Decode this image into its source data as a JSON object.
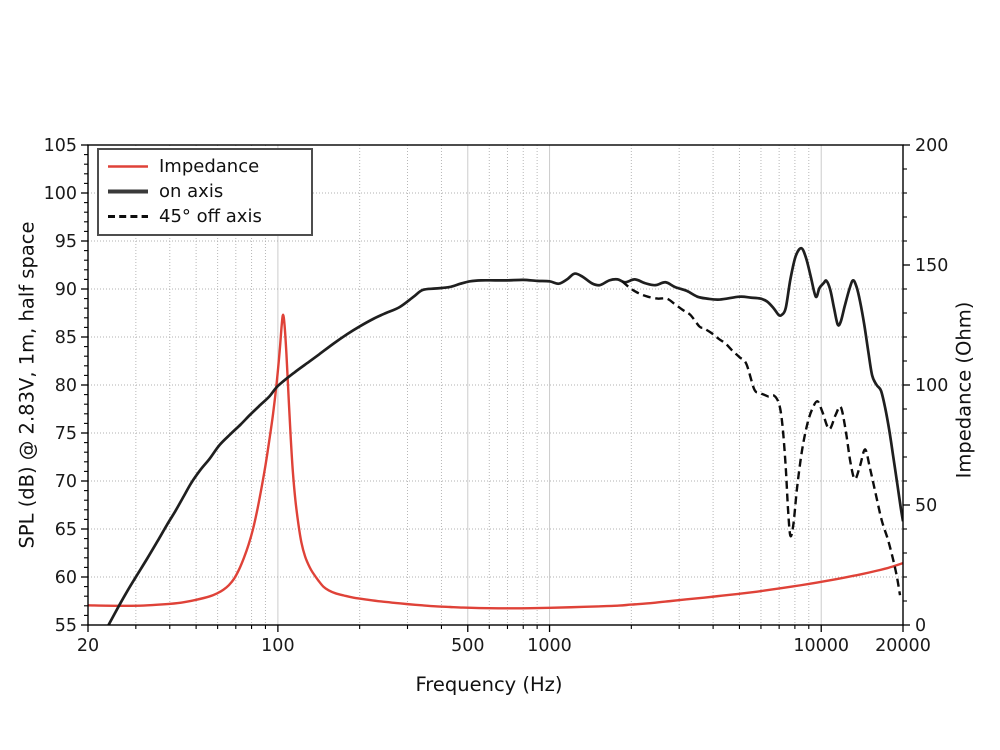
{
  "chart_data": {
    "type": "line",
    "x_axis": {
      "label": "Frequency (Hz)",
      "scale": "log",
      "min": 20,
      "max": 20000,
      "major_ticks": [
        {
          "v": 20,
          "l": "20"
        },
        {
          "v": 100,
          "l": "100"
        },
        {
          "v": 500,
          "l": "500"
        },
        {
          "v": 1000,
          "l": "1000"
        },
        {
          "v": 10000,
          "l": "10000"
        },
        {
          "v": 20000,
          "l": "20000"
        }
      ],
      "minor_ticks": [
        30,
        40,
        50,
        60,
        70,
        80,
        90,
        200,
        300,
        400,
        600,
        700,
        800,
        900,
        2000,
        3000,
        4000,
        5000,
        6000,
        7000,
        8000,
        9000
      ]
    },
    "y_left_axis": {
      "label": "SPL (dB) @ 2.83V, 1m, half space",
      "min": 55,
      "max": 105,
      "major_step": 5,
      "minor_step": 1
    },
    "y_right_axis": {
      "label": "Impedance (Ohm)",
      "min": 0,
      "max": 200,
      "major_step": 50,
      "minor_step": 10
    },
    "grid": {
      "style": "dotted",
      "color": "#b0b0b0"
    },
    "legend_position": "top-left",
    "series": [
      {
        "name": "Impedance",
        "axis": "right",
        "unit": "Ohm",
        "color": "#df4238",
        "style": "solid",
        "points": [
          [
            20,
            8.2
          ],
          [
            26,
            8.0
          ],
          [
            32,
            8.1
          ],
          [
            38,
            8.6
          ],
          [
            44,
            9.3
          ],
          [
            50,
            10.5
          ],
          [
            56,
            11.9
          ],
          [
            60,
            13.3
          ],
          [
            63,
            14.7
          ],
          [
            66,
            16.6
          ],
          [
            69,
            19.3
          ],
          [
            72,
            23.2
          ],
          [
            75,
            28
          ],
          [
            78,
            33.5
          ],
          [
            81,
            40
          ],
          [
            84,
            48
          ],
          [
            87,
            57
          ],
          [
            90,
            66.5
          ],
          [
            93,
            77
          ],
          [
            96,
            88
          ],
          [
            99,
            101
          ],
          [
            101.5,
            114
          ],
          [
            103.3,
            125
          ],
          [
            104.5,
            129.3
          ],
          [
            105.8,
            125
          ],
          [
            107.5,
            113
          ],
          [
            109.5,
            95
          ],
          [
            111.5,
            78
          ],
          [
            113.5,
            64
          ],
          [
            116,
            52
          ],
          [
            119,
            42
          ],
          [
            122,
            34.5
          ],
          [
            126,
            28.5
          ],
          [
            131,
            24
          ],
          [
            135,
            21.5
          ],
          [
            141,
            18.5
          ],
          [
            147,
            16.0
          ],
          [
            154,
            14.4
          ],
          [
            163,
            13.2
          ],
          [
            175,
            12.3
          ],
          [
            190,
            11.4
          ],
          [
            215,
            10.5
          ],
          [
            240,
            9.8
          ],
          [
            270,
            9.2
          ],
          [
            300,
            8.7
          ],
          [
            340,
            8.2
          ],
          [
            380,
            7.8
          ],
          [
            430,
            7.5
          ],
          [
            480,
            7.25
          ],
          [
            550,
            7.05
          ],
          [
            650,
            6.95
          ],
          [
            750,
            6.95
          ],
          [
            850,
            7.0
          ],
          [
            1000,
            7.15
          ],
          [
            1200,
            7.4
          ],
          [
            1500,
            7.75
          ],
          [
            1800,
            8.1
          ],
          [
            2000,
            8.5
          ],
          [
            2400,
            9.2
          ],
          [
            2800,
            10.0
          ],
          [
            3200,
            10.7
          ],
          [
            3700,
            11.4
          ],
          [
            4300,
            12.2
          ],
          [
            5000,
            13.0
          ],
          [
            5800,
            13.9
          ],
          [
            6700,
            14.9
          ],
          [
            7800,
            16.0
          ],
          [
            9000,
            17.1
          ],
          [
            10500,
            18.4
          ],
          [
            12000,
            19.6
          ],
          [
            14000,
            21.1
          ],
          [
            16000,
            22.6
          ],
          [
            18000,
            24.1
          ],
          [
            20000,
            25.8
          ]
        ]
      },
      {
        "name": "on axis",
        "axis": "left",
        "unit": "dB",
        "color": "#1f1f1f",
        "style": "solid",
        "points": [
          [
            23.8,
            55
          ],
          [
            26,
            57.0
          ],
          [
            28,
            58.6
          ],
          [
            30,
            60.0
          ],
          [
            33,
            61.9
          ],
          [
            36,
            63.7
          ],
          [
            39,
            65.4
          ],
          [
            42,
            66.9
          ],
          [
            45,
            68.4
          ],
          [
            48,
            69.8
          ],
          [
            52,
            71.2
          ],
          [
            56,
            72.3
          ],
          [
            61,
            73.75
          ],
          [
            67,
            74.9
          ],
          [
            73,
            75.9
          ],
          [
            79,
            76.9
          ],
          [
            86,
            77.9
          ],
          [
            93,
            78.8
          ],
          [
            100,
            79.9
          ],
          [
            115,
            81.3
          ],
          [
            130,
            82.4
          ],
          [
            142,
            83.2
          ],
          [
            160,
            84.3
          ],
          [
            180,
            85.3
          ],
          [
            200,
            86.1
          ],
          [
            225,
            86.9
          ],
          [
            250,
            87.5
          ],
          [
            280,
            88.1
          ],
          [
            316,
            89.2
          ],
          [
            341,
            89.9
          ],
          [
            380,
            90.05
          ],
          [
            428,
            90.2
          ],
          [
            470,
            90.55
          ],
          [
            510,
            90.8
          ],
          [
            560,
            90.9
          ],
          [
            630,
            90.9
          ],
          [
            700,
            90.9
          ],
          [
            800,
            90.95
          ],
          [
            900,
            90.85
          ],
          [
            1000,
            90.8
          ],
          [
            1080,
            90.55
          ],
          [
            1160,
            91.0
          ],
          [
            1235,
            91.6
          ],
          [
            1320,
            91.3
          ],
          [
            1430,
            90.6
          ],
          [
            1530,
            90.4
          ],
          [
            1660,
            90.9
          ],
          [
            1780,
            91.0
          ],
          [
            1900,
            90.7
          ],
          [
            2060,
            91.0
          ],
          [
            2250,
            90.6
          ],
          [
            2450,
            90.4
          ],
          [
            2670,
            90.7
          ],
          [
            2900,
            90.2
          ],
          [
            3200,
            89.8
          ],
          [
            3500,
            89.2
          ],
          [
            3800,
            89.0
          ],
          [
            4230,
            88.9
          ],
          [
            5000,
            89.2
          ],
          [
            5500,
            89.1
          ],
          [
            5970,
            89.0
          ],
          [
            6320,
            88.7
          ],
          [
            6680,
            88.0
          ],
          [
            6970,
            87.3
          ],
          [
            7150,
            87.3
          ],
          [
            7400,
            88.0
          ],
          [
            7700,
            91.0
          ],
          [
            8050,
            93.4
          ],
          [
            8450,
            94.25
          ],
          [
            8800,
            93.2
          ],
          [
            9150,
            91.3
          ],
          [
            9550,
            89.2
          ],
          [
            9850,
            90.1
          ],
          [
            10200,
            90.6
          ],
          [
            10450,
            90.85
          ],
          [
            10800,
            89.9
          ],
          [
            11150,
            88.0
          ],
          [
            11500,
            86.3
          ],
          [
            11800,
            86.6
          ],
          [
            12200,
            88.2
          ],
          [
            12700,
            90.0
          ],
          [
            13100,
            90.9
          ],
          [
            13500,
            90.2
          ],
          [
            13900,
            88.7
          ],
          [
            14400,
            86.3
          ],
          [
            14900,
            83.5
          ],
          [
            15400,
            81.0
          ],
          [
            16000,
            80.0
          ],
          [
            16600,
            79.4
          ],
          [
            17200,
            77.6
          ],
          [
            17800,
            75.3
          ],
          [
            18400,
            72.6
          ],
          [
            19100,
            69.5
          ],
          [
            19600,
            67.3
          ],
          [
            20000,
            65.8
          ]
        ]
      },
      {
        "name": "45° off axis",
        "axis": "left",
        "unit": "dB",
        "color": "#0d0d0d",
        "style": "dashed",
        "points": [
          [
            1850,
            90.8
          ],
          [
            2000,
            90.0
          ],
          [
            2150,
            89.5
          ],
          [
            2300,
            89.2
          ],
          [
            2500,
            89.0
          ],
          [
            2700,
            89.0
          ],
          [
            2900,
            88.4
          ],
          [
            3100,
            87.8
          ],
          [
            3300,
            87.3
          ],
          [
            3560,
            86.1
          ],
          [
            3700,
            85.9
          ],
          [
            3950,
            85.4
          ],
          [
            4200,
            84.8
          ],
          [
            4450,
            84.3
          ],
          [
            4700,
            83.6
          ],
          [
            5000,
            82.9
          ],
          [
            5300,
            82.2
          ],
          [
            5660,
            79.6
          ],
          [
            5900,
            79.2
          ],
          [
            6150,
            79.0
          ],
          [
            6400,
            78.8
          ],
          [
            6700,
            78.9
          ],
          [
            7000,
            78.0
          ],
          [
            7200,
            75.8
          ],
          [
            7400,
            71.5
          ],
          [
            7550,
            67.0
          ],
          [
            7700,
            64.3
          ],
          [
            7900,
            65.5
          ],
          [
            8150,
            69.3
          ],
          [
            8500,
            73.2
          ],
          [
            8900,
            76.0
          ],
          [
            9300,
            77.6
          ],
          [
            9700,
            78.3
          ],
          [
            10100,
            77.2
          ],
          [
            10700,
            75.4
          ],
          [
            11300,
            76.9
          ],
          [
            11800,
            77.7
          ],
          [
            12300,
            75.3
          ],
          [
            12800,
            72.0
          ],
          [
            13300,
            70.2
          ],
          [
            13900,
            71.6
          ],
          [
            14500,
            73.3
          ],
          [
            15100,
            71.4
          ],
          [
            15800,
            68.9
          ],
          [
            16700,
            65.9
          ],
          [
            17600,
            63.9
          ],
          [
            18400,
            61.8
          ],
          [
            19000,
            60.0
          ],
          [
            19500,
            58.1
          ]
        ]
      }
    ]
  }
}
